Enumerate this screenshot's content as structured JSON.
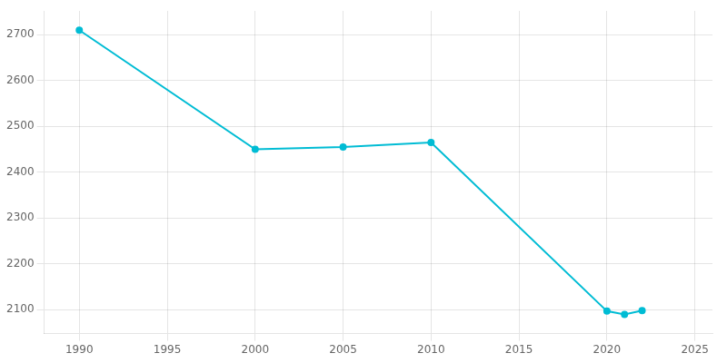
{
  "chart_data": {
    "type": "line",
    "x": [
      1990,
      2000,
      2005,
      2010,
      2020,
      2021,
      2022
    ],
    "values": [
      2710,
      2450,
      2455,
      2465,
      2097,
      2090,
      2098
    ],
    "color": "#00BCD4",
    "marker": "circle",
    "xlim": [
      1988,
      2026
    ],
    "ylim": [
      2048,
      2752
    ],
    "xticks": [
      1990,
      1995,
      2000,
      2005,
      2010,
      2015,
      2020,
      2025
    ],
    "yticks": [
      2100,
      2200,
      2300,
      2400,
      2500,
      2600,
      2700
    ],
    "grid": true
  }
}
